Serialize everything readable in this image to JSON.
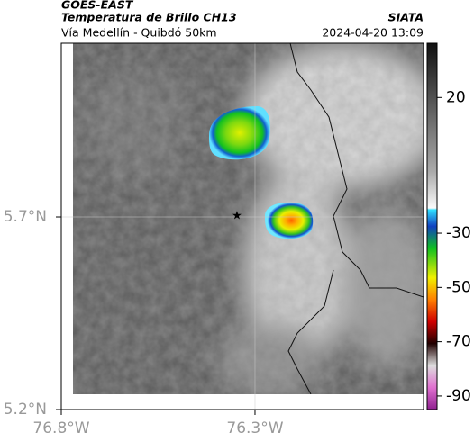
{
  "header": {
    "title": "GOES-EAST",
    "subtitle": "Temperatura de Brillo CH13",
    "source": "SIATA",
    "route": "Vía Medellín - Quibdó 50km",
    "timestamp": "2024-04-20 13:09"
  },
  "map": {
    "xlim": [
      -76.8,
      -75.865
    ],
    "ylim": [
      5.2,
      6.151
    ],
    "xticks": [
      {
        "value": -76.8,
        "label": "76.8°W"
      },
      {
        "value": -76.3,
        "label": "76.3°W"
      }
    ],
    "yticks": [
      {
        "value": 5.2,
        "label": "5.2°N"
      },
      {
        "value": 5.7,
        "label": "5.7°N"
      }
    ],
    "grid": true
  },
  "colorbar": {
    "lim": [
      40,
      -95
    ],
    "ticks": [
      20,
      -30,
      -50,
      -70,
      -90
    ]
  }
}
